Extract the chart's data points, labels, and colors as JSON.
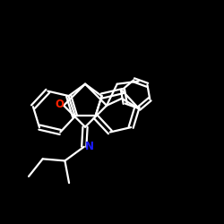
{
  "background_color": "#000000",
  "bond_color": "#ffffff",
  "O_color": "#ff2200",
  "N_color": "#1a1aff",
  "line_width": 1.6,
  "figsize": [
    2.5,
    2.5
  ],
  "dpi": 100,
  "xlim": [
    0.0,
    1.0
  ],
  "ylim": [
    0.0,
    1.0
  ],
  "notes": "N-sec-Butyl-3-ethyl-3-phenylspiro[9H-fluorene-9,2-oxetan]-4-imine"
}
